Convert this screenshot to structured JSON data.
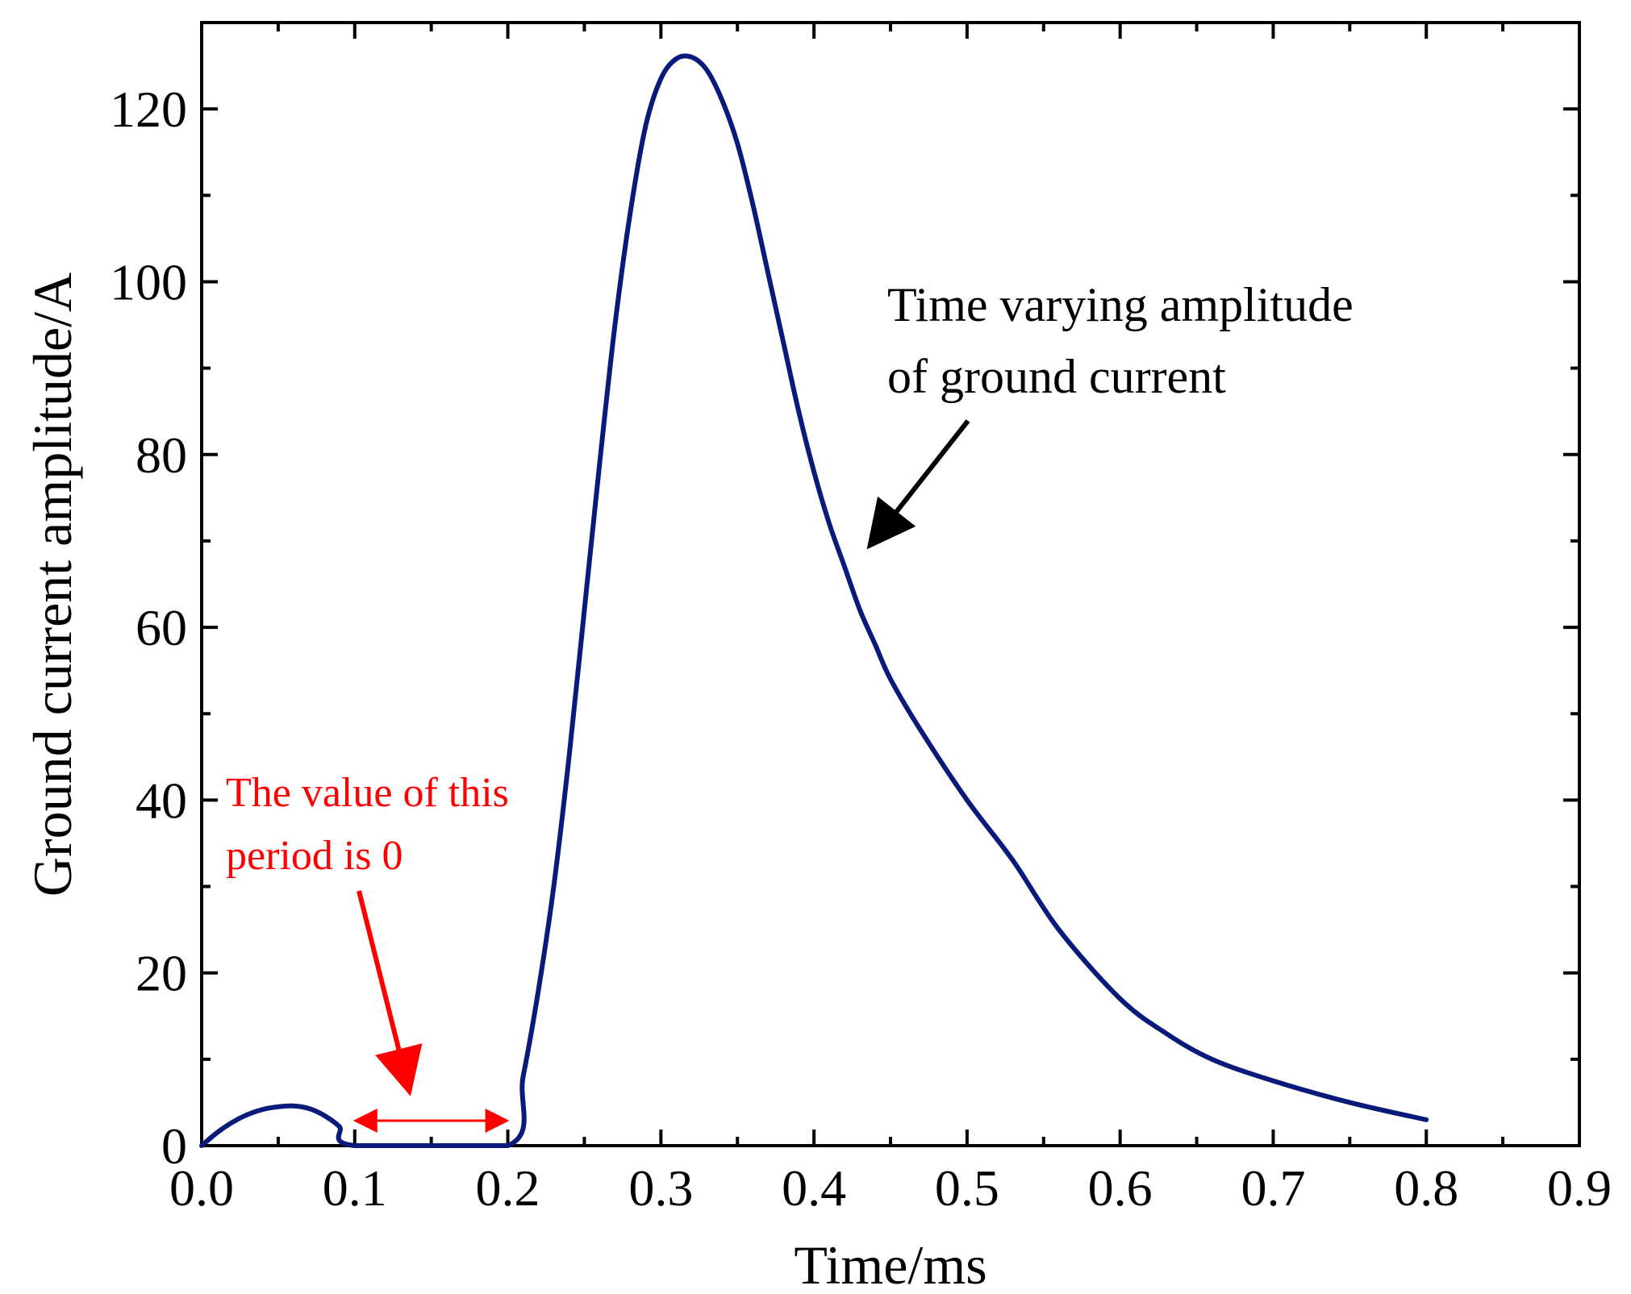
{
  "chart_data": {
    "type": "line",
    "title": "",
    "xlabel": "Time/ms",
    "ylabel": "Ground current amplitude/A",
    "xlim": [
      0.0,
      0.9
    ],
    "ylim": [
      0,
      130
    ],
    "x_ticks": [
      "0.0",
      "0.1",
      "0.2",
      "0.3",
      "0.4",
      "0.5",
      "0.6",
      "0.7",
      "0.8",
      "0.9"
    ],
    "y_ticks": [
      "0",
      "20",
      "40",
      "60",
      "80",
      "100",
      "120"
    ],
    "grid": false,
    "series": [
      {
        "name": "Ground current",
        "color": "#0a1a7a",
        "x": [
          0.0,
          0.01,
          0.02,
          0.03,
          0.04,
          0.05,
          0.06,
          0.07,
          0.08,
          0.09,
          0.1,
          0.2,
          0.21,
          0.22,
          0.23,
          0.24,
          0.25,
          0.26,
          0.27,
          0.28,
          0.29,
          0.3,
          0.31,
          0.32,
          0.33,
          0.34,
          0.35,
          0.36,
          0.37,
          0.38,
          0.39,
          0.4,
          0.41,
          0.42,
          0.43,
          0.44,
          0.45,
          0.47,
          0.5,
          0.53,
          0.56,
          0.6,
          0.63,
          0.66,
          0.7,
          0.75,
          0.8
        ],
        "y": [
          0,
          1.5,
          2.7,
          3.6,
          4.2,
          4.5,
          4.6,
          4.3,
          3.5,
          2.2,
          0,
          0,
          8,
          18,
          30,
          45,
          62,
          79,
          95,
          108,
          118,
          123.5,
          125.8,
          126,
          124.5,
          121,
          116,
          109,
          101,
          93,
          85,
          78,
          72,
          67,
          62,
          58,
          54,
          48,
          40,
          33,
          25,
          17,
          13,
          10,
          7.5,
          5,
          3
        ]
      }
    ],
    "annotations": [
      {
        "lines": [
          "Time varying amplitude",
          "of ground current"
        ],
        "color": "#000000",
        "points_to": {
          "x": 0.434,
          "y": 69
        }
      },
      {
        "lines": [
          "The value of this",
          "period is 0"
        ],
        "color": "#ff0000",
        "points_to": {
          "x": 0.138,
          "y": 5.5
        },
        "span": [
          0.1,
          0.2
        ]
      }
    ]
  }
}
